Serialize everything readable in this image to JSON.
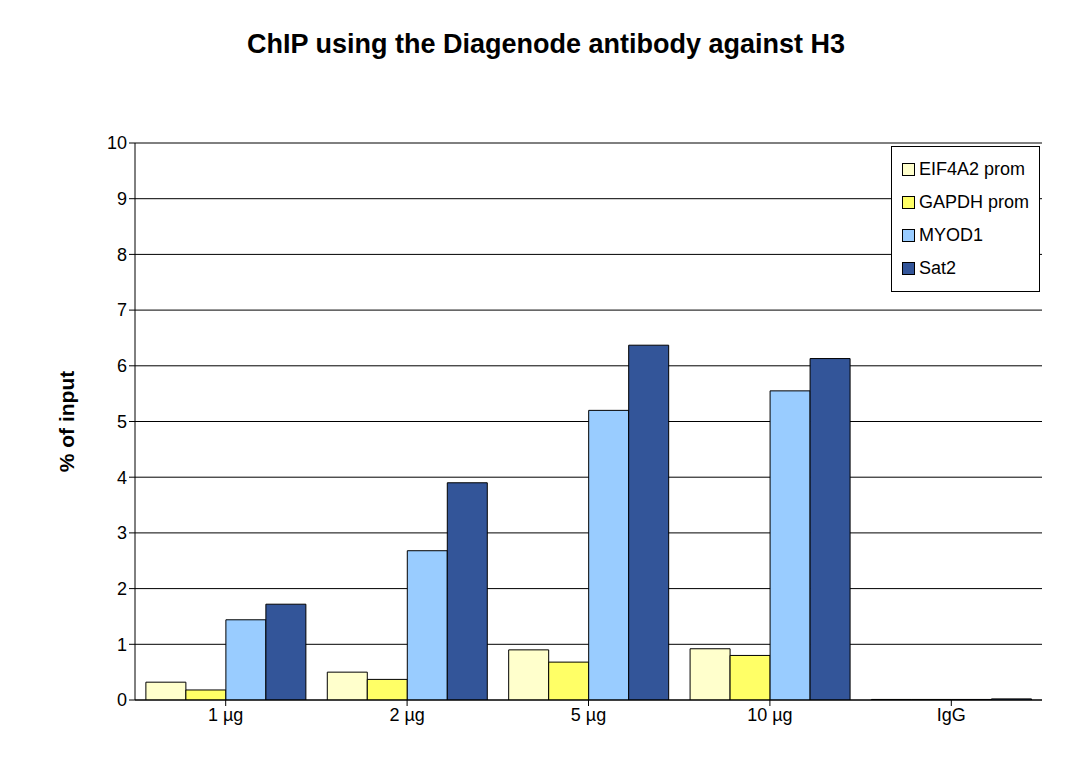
{
  "chart_data": {
    "type": "bar",
    "title": "ChIP using the Diagenode antibody against H3",
    "y_label": "% of input",
    "categories": [
      "1 µg",
      "2 µg",
      "5 µg",
      "10 µg",
      "IgG"
    ],
    "series": [
      {
        "name": "EIF4A2 prom",
        "color": "#ffffcc",
        "values": [
          0.32,
          0.5,
          0.9,
          0.92,
          0.01
        ]
      },
      {
        "name": "GAPDH prom",
        "color": "#ffff66",
        "values": [
          0.18,
          0.37,
          0.68,
          0.8,
          0.01
        ]
      },
      {
        "name": "MYOD1",
        "color": "#99ccff",
        "values": [
          1.44,
          2.68,
          5.2,
          5.55,
          0.01
        ]
      },
      {
        "name": "Sat2",
        "color": "#335599",
        "values": [
          1.72,
          3.9,
          6.37,
          6.13,
          0.02
        ]
      }
    ],
    "ylim": [
      0,
      10
    ],
    "yticks": [
      0,
      1,
      2,
      3,
      4,
      5,
      6,
      7,
      8,
      9,
      10
    ],
    "grid": true,
    "legend": "upper right"
  }
}
